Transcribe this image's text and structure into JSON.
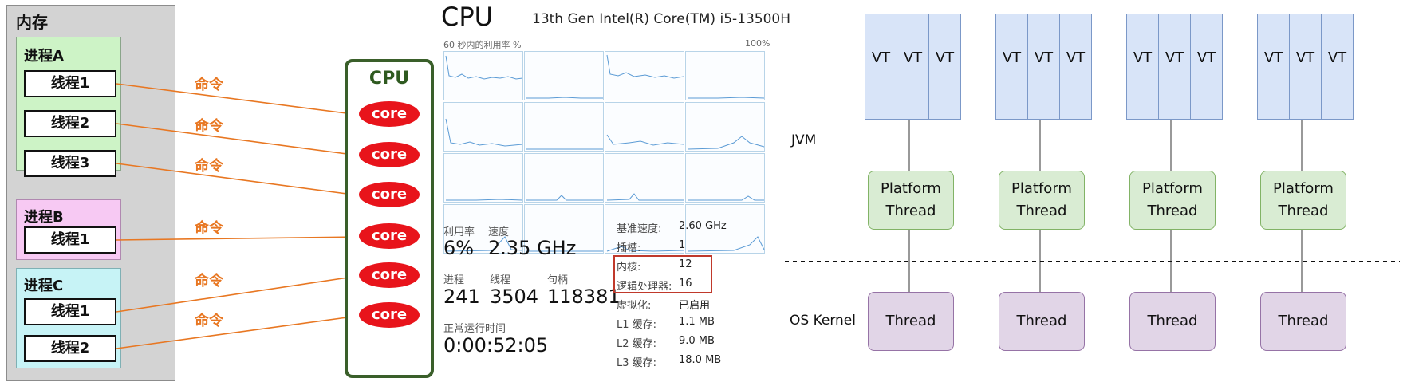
{
  "memory": {
    "title": "内存",
    "processes": [
      {
        "name": "进程A",
        "threads": [
          "线程1",
          "线程2",
          "线程3"
        ],
        "color": "#cdf3c6"
      },
      {
        "name": "进程B",
        "threads": [
          "线程1"
        ],
        "color": "#f7c9f3"
      },
      {
        "name": "进程C",
        "threads": [
          "线程1",
          "线程2"
        ],
        "color": "#c7f3f6"
      }
    ]
  },
  "command_label": "命令",
  "cpu": {
    "label": "CPU",
    "cores": [
      "core",
      "core",
      "core",
      "core",
      "core",
      "core"
    ]
  },
  "task_manager": {
    "title": "CPU",
    "model": "13th Gen Intel(R) Core(TM) i5-13500H",
    "graph_caption": "60 秒内的利用率 %",
    "graph_max": "100%",
    "stats": {
      "utilization_label": "利用率",
      "utilization": "6%",
      "speed_label": "速度",
      "speed": "2.35 GHz",
      "processes_label": "进程",
      "processes": "241",
      "threads_label": "线程",
      "threads": "3504",
      "handles_label": "句柄",
      "handles": "118381",
      "uptime_label": "正常运行时间",
      "uptime": "0:00:52:05"
    },
    "specs": [
      {
        "k": "基准速度:",
        "v": "2.60 GHz"
      },
      {
        "k": "插槽:",
        "v": "1"
      },
      {
        "k": "内核:",
        "v": "12"
      },
      {
        "k": "逻辑处理器:",
        "v": "16"
      },
      {
        "k": "虚拟化:",
        "v": "已启用"
      },
      {
        "k": "L1 缓存:",
        "v": "1.1 MB"
      },
      {
        "k": "L2 缓存:",
        "v": "9.0 MB"
      },
      {
        "k": "L3 缓存:",
        "v": "18.0 MB"
      }
    ]
  },
  "jvm_diagram": {
    "jvm_label": "JVM",
    "os_label": "OS Kernel",
    "vt_label": "VT",
    "platform_line1": "Platform",
    "platform_line2": "Thread",
    "kernel_thread": "Thread",
    "groups": 4
  }
}
